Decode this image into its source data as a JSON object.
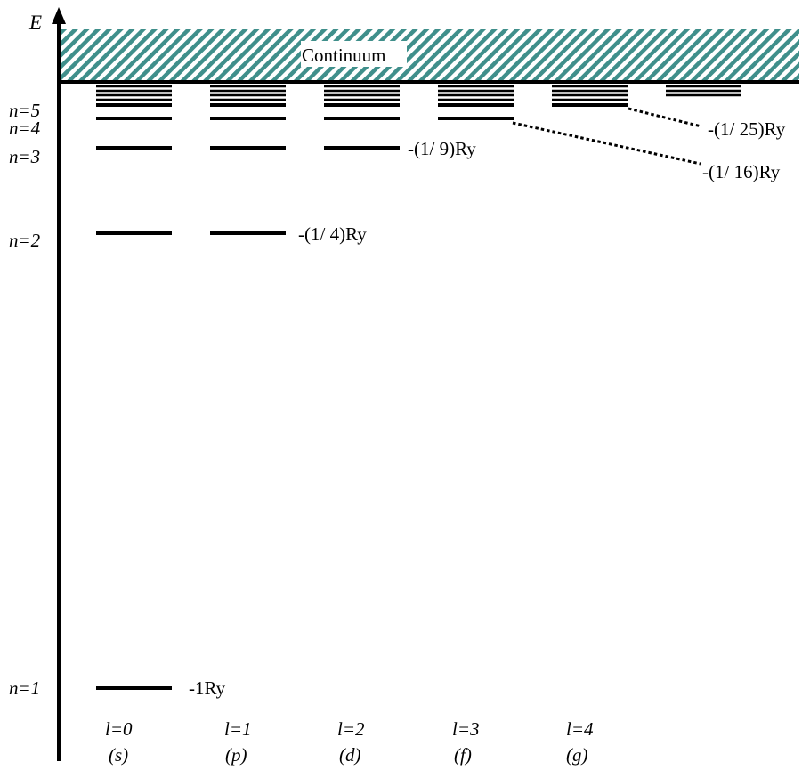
{
  "axis": {
    "label": "E"
  },
  "continuum": {
    "label": "Continuum",
    "color": "#3f8f8b"
  },
  "levels": [
    {
      "n": 1,
      "label": "n=1",
      "energy_label": "-1Ry"
    },
    {
      "n": 2,
      "label": "n=2",
      "energy_label": "-(1/ 4)Ry"
    },
    {
      "n": 3,
      "label": "n=3",
      "energy_label": "-(1/ 9)Ry"
    },
    {
      "n": 4,
      "label": "n=4",
      "energy_label": "-(1/ 16)Ry"
    },
    {
      "n": 5,
      "label": "n=5",
      "energy_label": "-(1/ 25)Ry"
    }
  ],
  "columns": [
    {
      "l": "l=0",
      "orbital": "(s)"
    },
    {
      "l": "l=1",
      "orbital": "(p)"
    },
    {
      "l": "l=2",
      "orbital": "(d)"
    },
    {
      "l": "l=3",
      "orbital": "(f)"
    },
    {
      "l": "l=4",
      "orbital": "(g)"
    },
    {
      "l": "",
      "orbital": ""
    }
  ]
}
